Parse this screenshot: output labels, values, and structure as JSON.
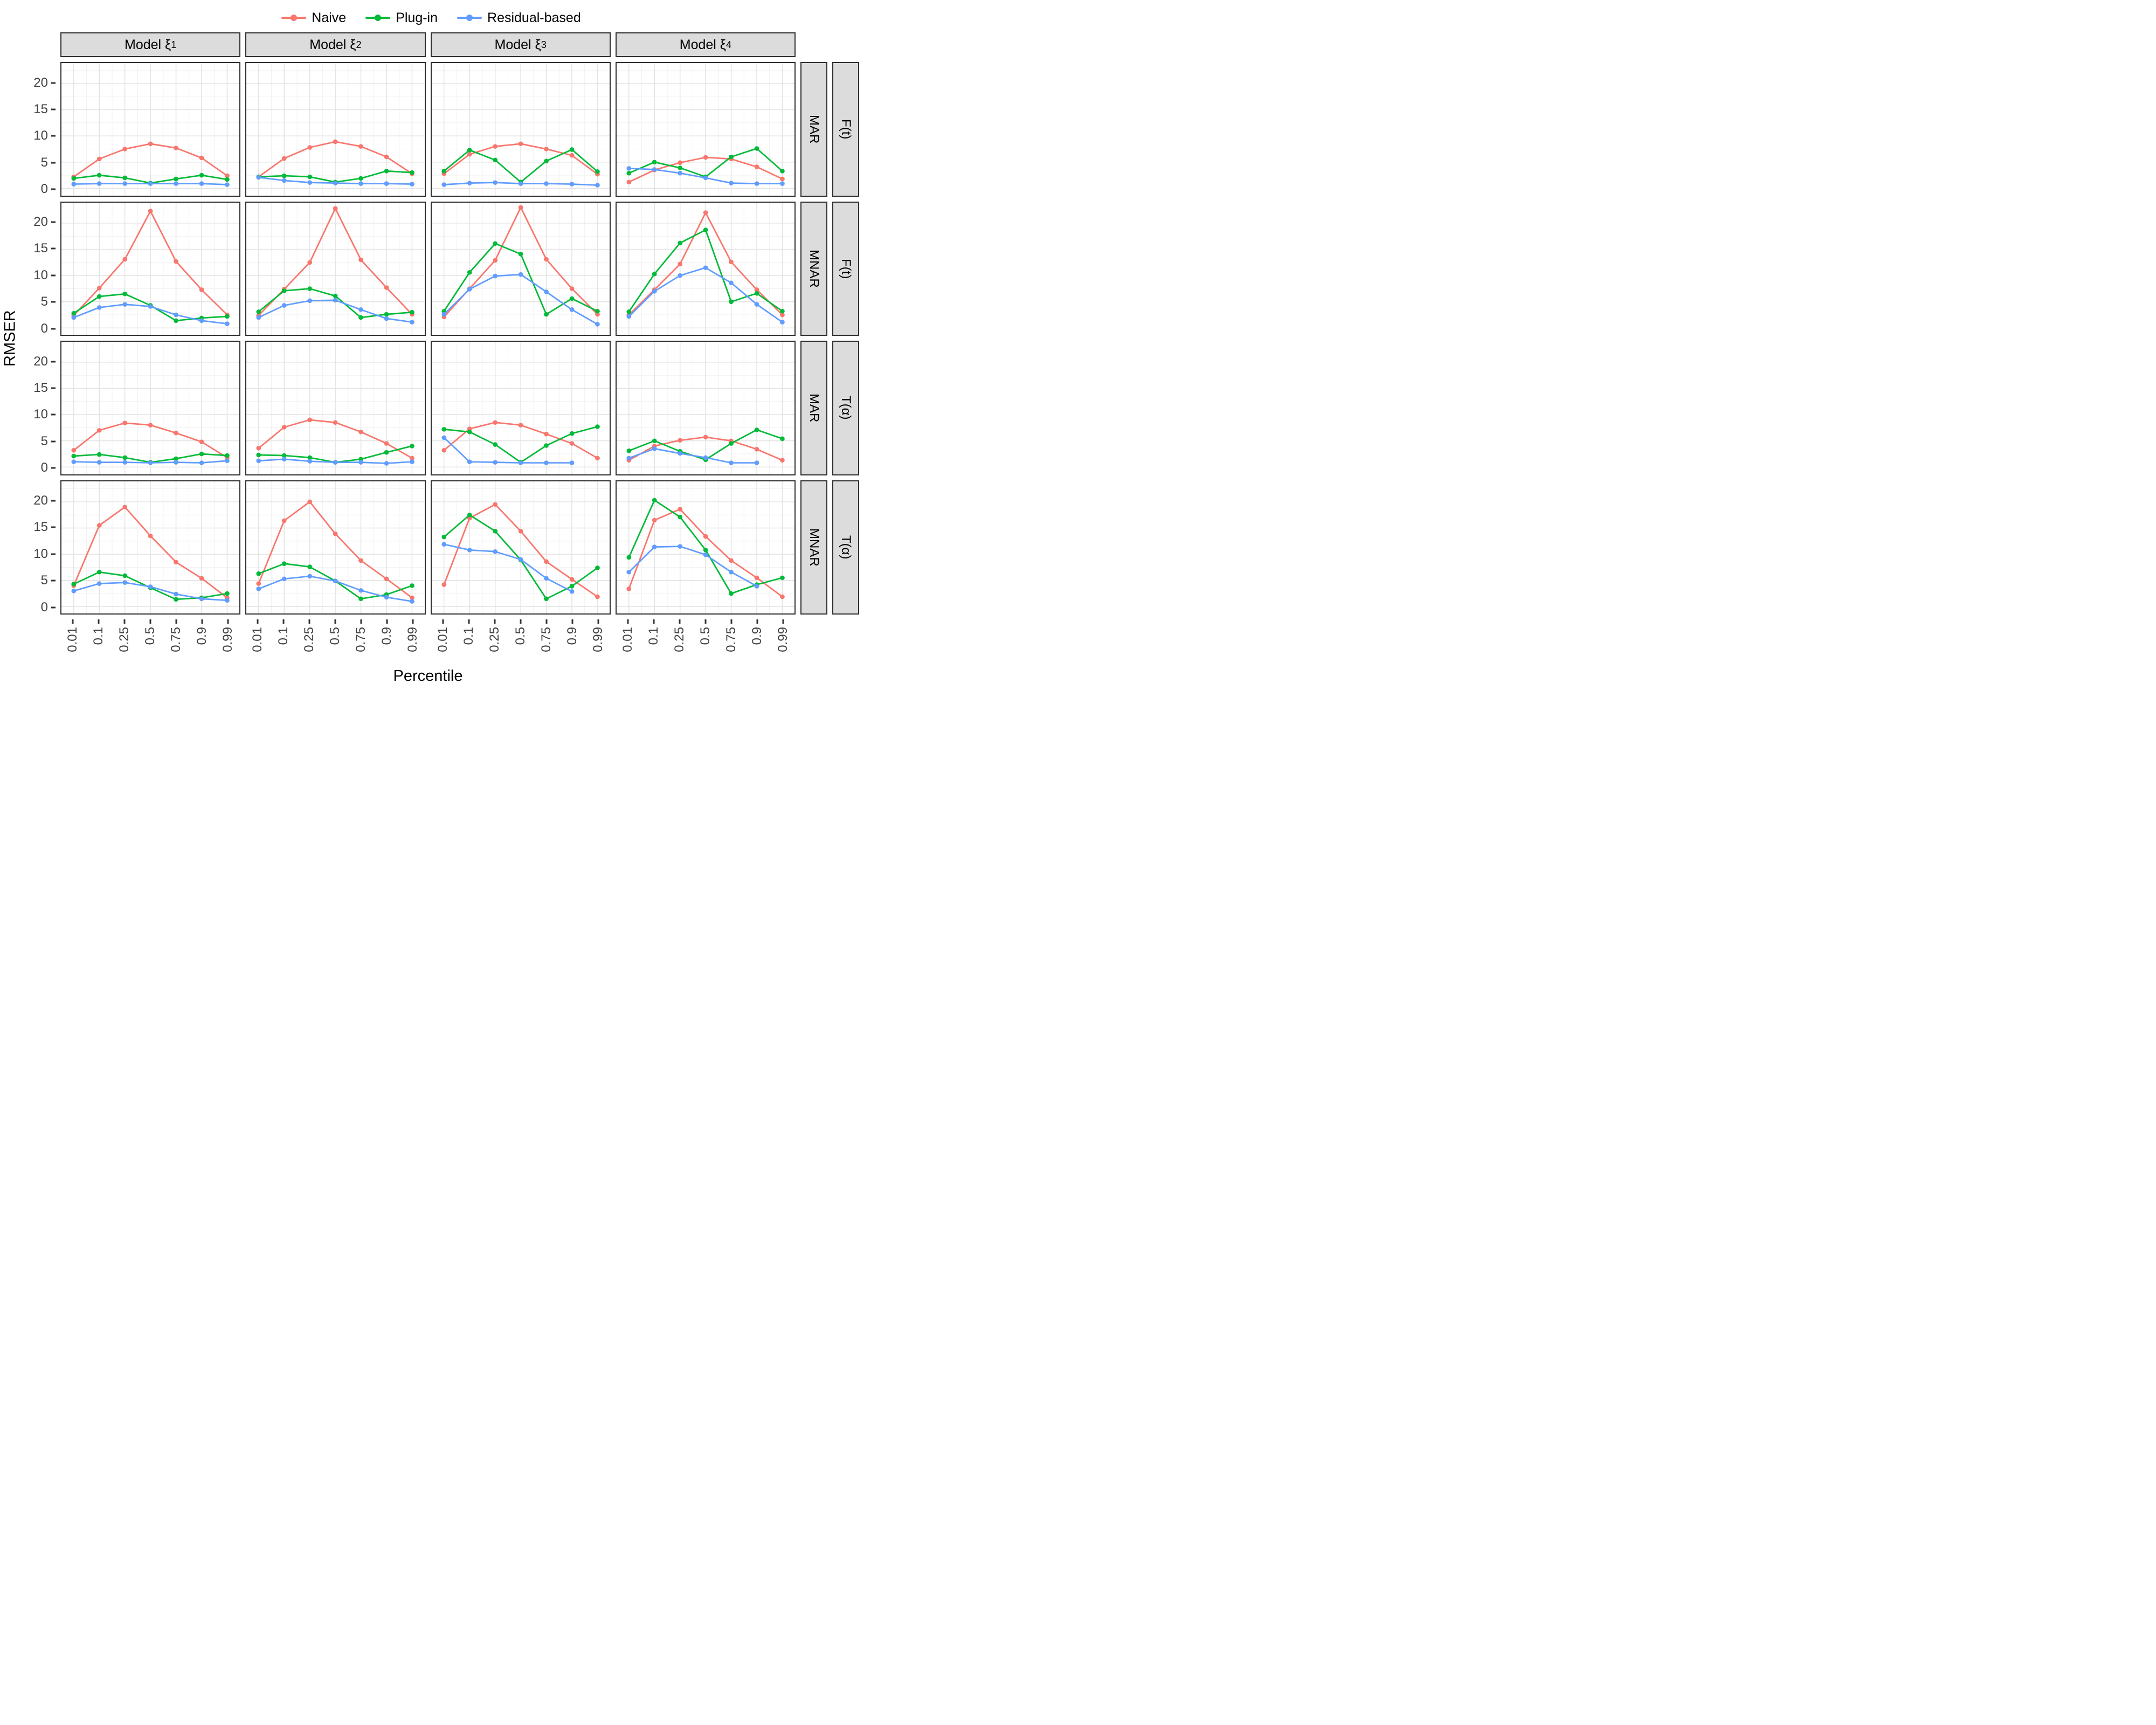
{
  "legend": {
    "items": [
      {
        "name": "naive",
        "label": "Naive",
        "color": "#F8766D"
      },
      {
        "name": "plug-in",
        "label": "Plug-in",
        "color": "#00BA38"
      },
      {
        "name": "residual-based",
        "label": "Residual-based",
        "color": "#619CFF"
      }
    ]
  },
  "axes": {
    "x_label": "Percentile",
    "y_label": "RMSER",
    "x_ticks": [
      "0.01",
      "0.1",
      "0.25",
      "0.5",
      "0.75",
      "0.9",
      "0.99"
    ],
    "y_ticks": [
      0,
      5,
      10,
      15,
      20
    ]
  },
  "facets": {
    "columns": [
      {
        "prefix": "Model ξ",
        "sub": "1"
      },
      {
        "prefix": "Model ξ",
        "sub": "2"
      },
      {
        "prefix": "Model ξ",
        "sub": "3"
      },
      {
        "prefix": "Model ξ",
        "sub": "4"
      }
    ],
    "rows": [
      {
        "mechanism": "MAR",
        "measure": "F(t)"
      },
      {
        "mechanism": "MNAR",
        "measure": "F(t)"
      },
      {
        "mechanism": "MAR",
        "measure": "T(α)"
      },
      {
        "mechanism": "MNAR",
        "measure": "T(α)"
      }
    ]
  },
  "chart_data": {
    "type": "line",
    "x": [
      0.01,
      0.1,
      0.25,
      0.5,
      0.75,
      0.9,
      0.99
    ],
    "x_scale": "even-spacing",
    "ylim": [
      -1.35,
      23.9
    ],
    "grid": "major+minor",
    "legend_position": "top",
    "panels": [
      {
        "model": "ξ1",
        "mechanism": "MAR",
        "measure": "F(t)",
        "series": [
          {
            "name": "Naive",
            "values": [
              2.2,
              5.6,
              7.5,
              8.5,
              7.7,
              5.8,
              2.4
            ]
          },
          {
            "name": "Plug-in",
            "values": [
              1.9,
              2.5,
              2.0,
              1.0,
              1.8,
              2.5,
              1.7
            ]
          },
          {
            "name": "Residual-based",
            "values": [
              0.8,
              0.9,
              0.9,
              0.9,
              0.9,
              0.9,
              0.7
            ]
          }
        ]
      },
      {
        "model": "ξ2",
        "mechanism": "MAR",
        "measure": "F(t)",
        "series": [
          {
            "name": "Naive",
            "values": [
              2.2,
              5.7,
              7.8,
              8.9,
              8.0,
              6.0,
              2.8
            ]
          },
          {
            "name": "Plug-in",
            "values": [
              2.2,
              2.4,
              2.2,
              1.2,
              1.9,
              3.3,
              3.0
            ]
          },
          {
            "name": "Residual-based",
            "values": [
              2.1,
              1.5,
              1.1,
              1.0,
              0.9,
              0.9,
              0.8
            ]
          }
        ]
      },
      {
        "model": "ξ3",
        "mechanism": "MAR",
        "measure": "F(t)",
        "series": [
          {
            "name": "Naive",
            "values": [
              2.8,
              6.5,
              8.0,
              8.5,
              7.5,
              6.3,
              2.7
            ]
          },
          {
            "name": "Plug-in",
            "values": [
              3.3,
              7.3,
              5.4,
              1.2,
              5.2,
              7.4,
              3.2
            ]
          },
          {
            "name": "Residual-based",
            "values": [
              0.7,
              1.0,
              1.1,
              0.9,
              0.9,
              0.8,
              0.6
            ]
          }
        ]
      },
      {
        "model": "ξ4",
        "mechanism": "MAR",
        "measure": "F(t)",
        "series": [
          {
            "name": "Naive",
            "values": [
              1.2,
              3.5,
              4.9,
              5.9,
              5.6,
              4.1,
              1.8
            ]
          },
          {
            "name": "Plug-in",
            "values": [
              2.9,
              5.0,
              3.9,
              2.2,
              6.0,
              7.6,
              3.3
            ]
          },
          {
            "name": "Residual-based",
            "values": [
              3.8,
              3.6,
              2.9,
              2.0,
              1.0,
              0.9,
              0.9
            ]
          }
        ]
      },
      {
        "model": "ξ1",
        "mechanism": "MNAR",
        "measure": "F(t)",
        "series": [
          {
            "name": "Naive",
            "values": [
              2.4,
              7.6,
              13.1,
              22.3,
              12.7,
              7.3,
              2.5
            ]
          },
          {
            "name": "Plug-in",
            "values": [
              2.8,
              6.0,
              6.5,
              4.3,
              1.4,
              1.9,
              2.2
            ]
          },
          {
            "name": "Residual-based",
            "values": [
              2.0,
              3.9,
              4.5,
              4.1,
              2.5,
              1.4,
              0.8
            ]
          }
        ]
      },
      {
        "model": "ξ2",
        "mechanism": "MNAR",
        "measure": "F(t)",
        "series": [
          {
            "name": "Naive",
            "values": [
              2.4,
              7.4,
              12.5,
              22.8,
              13.0,
              7.7,
              2.6
            ]
          },
          {
            "name": "Plug-in",
            "values": [
              3.1,
              7.1,
              7.5,
              6.1,
              2.0,
              2.6,
              3.0
            ]
          },
          {
            "name": "Residual-based",
            "values": [
              2.0,
              4.3,
              5.2,
              5.3,
              3.5,
              1.8,
              1.1
            ]
          }
        ]
      },
      {
        "model": "ξ3",
        "mechanism": "MNAR",
        "measure": "F(t)",
        "series": [
          {
            "name": "Naive",
            "values": [
              2.1,
              7.5,
              12.9,
              23.0,
              13.1,
              7.5,
              2.6
            ]
          },
          {
            "name": "Plug-in",
            "values": [
              3.2,
              10.6,
              16.1,
              14.1,
              2.6,
              5.6,
              3.2
            ]
          },
          {
            "name": "Residual-based",
            "values": [
              2.6,
              7.4,
              9.9,
              10.2,
              6.9,
              3.5,
              0.7
            ]
          }
        ]
      },
      {
        "model": "ξ4",
        "mechanism": "MNAR",
        "measure": "F(t)",
        "series": [
          {
            "name": "Naive",
            "values": [
              2.5,
              7.3,
              12.2,
              22.0,
              12.6,
              7.3,
              2.5
            ]
          },
          {
            "name": "Plug-in",
            "values": [
              3.1,
              10.3,
              16.2,
              18.7,
              5.0,
              6.6,
              3.2
            ]
          },
          {
            "name": "Residual-based",
            "values": [
              2.2,
              7.0,
              10.0,
              11.5,
              8.6,
              4.5,
              1.1
            ]
          }
        ]
      },
      {
        "model": "ξ1",
        "mechanism": "MAR",
        "measure": "T(α)",
        "series": [
          {
            "name": "Naive",
            "values": [
              3.2,
              7.0,
              8.4,
              8.0,
              6.5,
              4.8,
              1.8
            ]
          },
          {
            "name": "Plug-in",
            "values": [
              2.1,
              2.4,
              1.8,
              0.9,
              1.6,
              2.5,
              2.2
            ]
          },
          {
            "name": "Residual-based",
            "values": [
              1.0,
              0.9,
              0.9,
              0.8,
              0.9,
              0.8,
              1.2
            ]
          }
        ]
      },
      {
        "model": "ξ2",
        "mechanism": "MAR",
        "measure": "T(α)",
        "series": [
          {
            "name": "Naive",
            "values": [
              3.6,
              7.6,
              9.0,
              8.5,
              6.7,
              4.5,
              1.7
            ]
          },
          {
            "name": "Plug-in",
            "values": [
              2.3,
              2.2,
              1.8,
              0.9,
              1.5,
              2.8,
              4.0
            ]
          },
          {
            "name": "Residual-based",
            "values": [
              1.2,
              1.5,
              1.1,
              0.9,
              0.9,
              0.7,
              1.0
            ]
          }
        ]
      },
      {
        "model": "ξ3",
        "mechanism": "MAR",
        "measure": "T(α)",
        "series": [
          {
            "name": "Naive",
            "values": [
              3.2,
              7.3,
              8.5,
              8.0,
              6.3,
              4.5,
              1.7
            ]
          },
          {
            "name": "Plug-in",
            "values": [
              7.2,
              6.7,
              4.3,
              0.9,
              4.1,
              6.4,
              7.7
            ]
          },
          {
            "name": "Residual-based",
            "values": [
              5.6,
              1.0,
              0.9,
              0.8,
              0.8,
              0.8,
              null
            ]
          }
        ]
      },
      {
        "model": "ξ4",
        "mechanism": "MAR",
        "measure": "T(α)",
        "series": [
          {
            "name": "Naive",
            "values": [
              1.3,
              4.0,
              5.1,
              5.7,
              5.0,
              3.4,
              1.3
            ]
          },
          {
            "name": "Plug-in",
            "values": [
              3.1,
              5.0,
              3.0,
              1.4,
              4.5,
              7.1,
              5.4
            ]
          },
          {
            "name": "Residual-based",
            "values": [
              1.7,
              3.5,
              2.6,
              1.8,
              0.8,
              0.8,
              null
            ]
          }
        ]
      },
      {
        "model": "ξ1",
        "mechanism": "MNAR",
        "measure": "T(α)",
        "series": [
          {
            "name": "Naive",
            "values": [
              4.0,
              15.5,
              19.0,
              13.5,
              8.5,
              5.4,
              1.7
            ]
          },
          {
            "name": "Plug-in",
            "values": [
              4.3,
              6.6,
              5.9,
              3.6,
              1.4,
              1.7,
              2.5
            ]
          },
          {
            "name": "Residual-based",
            "values": [
              3.0,
              4.4,
              4.6,
              3.8,
              2.4,
              1.5,
              1.2
            ]
          }
        ]
      },
      {
        "model": "ξ2",
        "mechanism": "MNAR",
        "measure": "T(α)",
        "series": [
          {
            "name": "Naive",
            "values": [
              4.4,
              16.4,
              20.0,
              13.9,
              8.8,
              5.3,
              1.7
            ]
          },
          {
            "name": "Plug-in",
            "values": [
              6.3,
              8.2,
              7.6,
              4.9,
              1.5,
              2.3,
              4.0
            ]
          },
          {
            "name": "Residual-based",
            "values": [
              3.4,
              5.3,
              5.8,
              4.9,
              3.1,
              1.8,
              1.0
            ]
          }
        ]
      },
      {
        "model": "ξ3",
        "mechanism": "MNAR",
        "measure": "T(α)",
        "series": [
          {
            "name": "Naive",
            "values": [
              4.2,
              16.9,
              19.5,
              14.4,
              8.6,
              5.2,
              1.9
            ]
          },
          {
            "name": "Plug-in",
            "values": [
              13.3,
              17.5,
              14.4,
              8.9,
              1.5,
              3.9,
              7.4
            ]
          },
          {
            "name": "Residual-based",
            "values": [
              11.9,
              10.8,
              10.5,
              9.0,
              5.4,
              2.9,
              null
            ]
          }
        ]
      },
      {
        "model": "ξ4",
        "mechanism": "MNAR",
        "measure": "T(α)",
        "series": [
          {
            "name": "Naive",
            "values": [
              3.4,
              16.5,
              18.6,
              13.4,
              8.8,
              5.5,
              1.9
            ]
          },
          {
            "name": "Plug-in",
            "values": [
              9.4,
              20.3,
              17.1,
              10.8,
              2.5,
              4.2,
              5.5
            ]
          },
          {
            "name": "Residual-based",
            "values": [
              6.6,
              11.4,
              11.5,
              9.9,
              6.6,
              3.9,
              null
            ]
          }
        ]
      }
    ]
  }
}
